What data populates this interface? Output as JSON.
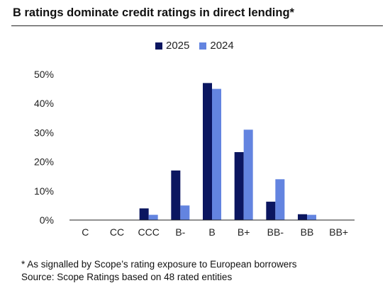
{
  "title": "B ratings dominate credit ratings in direct lending*",
  "colors": {
    "series_2025": "#0b1660",
    "series_2024": "#6384e0",
    "axis": "#222222",
    "rule": "#222222"
  },
  "footnotes": [
    "* As signalled by Scope’s rating exposure to European borrowers",
    "Source: Scope Ratings based on 48 rated entities"
  ],
  "chart_data": {
    "type": "bar",
    "title": "B ratings dominate credit ratings in direct lending*",
    "xlabel": "",
    "ylabel": "",
    "ylim": [
      0,
      50
    ],
    "yticks": [
      "0%",
      "10%",
      "20%",
      "30%",
      "40%",
      "50%"
    ],
    "categories": [
      "C",
      "CC",
      "CCC",
      "B-",
      "B",
      "B+",
      "BB-",
      "BB",
      "BB+"
    ],
    "series": [
      {
        "name": "2025",
        "values": [
          0,
          0,
          4,
          17,
          47,
          23.3,
          6.3,
          2,
          0
        ]
      },
      {
        "name": "2024",
        "values": [
          0,
          0,
          1.8,
          5,
          45,
          31,
          14,
          1.8,
          0
        ]
      }
    ],
    "legend_position": "top-center",
    "grid": false
  }
}
